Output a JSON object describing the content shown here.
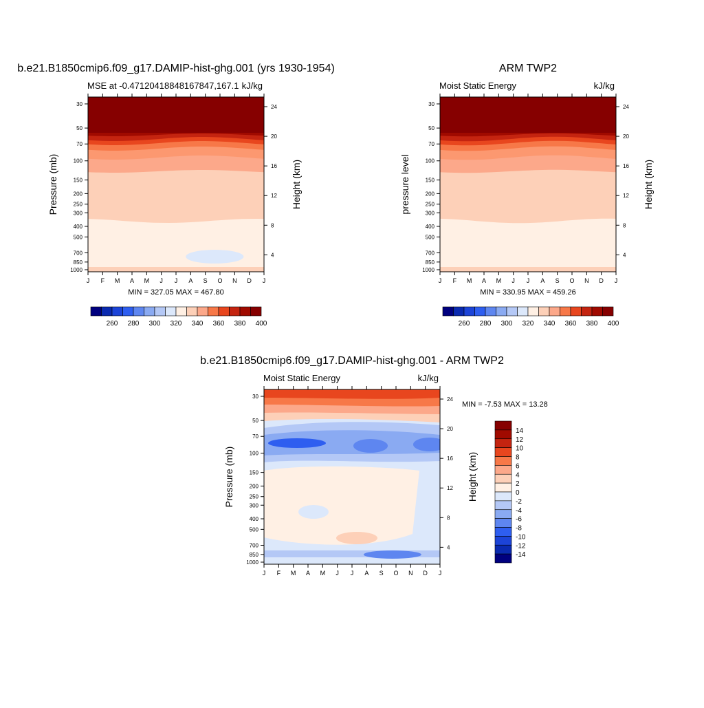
{
  "chart_data": [
    {
      "type": "heatmap",
      "title": "b.e21.B1850cmip6.f09_g17.DAMIP-hist-ghg.001 (yrs 1930-1954)",
      "left_subtitle": "MSE at -0.47120418848167847,167.1",
      "right_subtitle": "kJ/kg",
      "ylabel": "Pressure (mb)",
      "ylabel_right": "Height (km)",
      "x_ticks": [
        "J",
        "F",
        "M",
        "A",
        "M",
        "J",
        "J",
        "A",
        "S",
        "O",
        "N",
        "D",
        "J"
      ],
      "y_ticks": [
        "30",
        "50",
        "70",
        "100",
        "150",
        "200",
        "250",
        "300",
        "400",
        "500",
        "700",
        "850",
        "1000"
      ],
      "height_ticks": [
        "24",
        "20",
        "16",
        "12",
        "8",
        "4"
      ],
      "stats": "MIN = 327.05 MAX = 467.80",
      "levels": [
        260,
        270,
        280,
        290,
        300,
        310,
        320,
        330,
        340,
        350,
        360,
        370,
        380,
        390,
        400
      ],
      "colorbar_labels": [
        "260",
        "280",
        "300",
        "320",
        "340",
        "360",
        "380",
        "400"
      ]
    },
    {
      "type": "heatmap",
      "title": "ARM TWP2",
      "left_subtitle": "Moist Static Energy",
      "right_subtitle": "kJ/kg",
      "ylabel": "pressure level",
      "ylabel_right": "Height (km)",
      "x_ticks": [
        "J",
        "F",
        "M",
        "A",
        "M",
        "J",
        "J",
        "A",
        "S",
        "O",
        "N",
        "D",
        "J"
      ],
      "y_ticks": [
        "30",
        "50",
        "70",
        "100",
        "150",
        "200",
        "250",
        "300",
        "400",
        "500",
        "700",
        "850",
        "1000"
      ],
      "height_ticks": [
        "24",
        "20",
        "16",
        "12",
        "8",
        "4"
      ],
      "stats": "MIN = 330.95 MAX = 459.26",
      "levels": [
        260,
        270,
        280,
        290,
        300,
        310,
        320,
        330,
        340,
        350,
        360,
        370,
        380,
        390,
        400
      ],
      "colorbar_labels": [
        "260",
        "280",
        "300",
        "320",
        "340",
        "360",
        "380",
        "400"
      ]
    },
    {
      "type": "heatmap",
      "title": "b.e21.B1850cmip6.f09_g17.DAMIP-hist-ghg.001 - ARM TWP2",
      "left_subtitle": "Moist Static Energy",
      "right_subtitle": "kJ/kg",
      "ylabel": "Pressure (mb)",
      "ylabel_right": "Height (km)",
      "x_ticks": [
        "J",
        "F",
        "M",
        "A",
        "M",
        "J",
        "J",
        "A",
        "S",
        "O",
        "N",
        "D",
        "J"
      ],
      "y_ticks": [
        "30",
        "50",
        "70",
        "100",
        "150",
        "200",
        "250",
        "300",
        "400",
        "500",
        "700",
        "850",
        "1000"
      ],
      "height_ticks": [
        "24",
        "20",
        "16",
        "12",
        "8",
        "4"
      ],
      "stats": "MIN =  -7.53 MAX =  13.28",
      "levels": [
        -14,
        -12,
        -10,
        -8,
        -6,
        -4,
        -2,
        0,
        2,
        4,
        6,
        8,
        10,
        12,
        14
      ],
      "colorbar_labels": [
        "14",
        "12",
        "10",
        "8",
        "6",
        "4",
        "2",
        "0",
        "-2",
        "-4",
        "-6",
        "-8",
        "-10",
        "-12",
        "-14"
      ]
    }
  ],
  "palette": [
    "#00007f",
    "#0a2ab0",
    "#1c44d8",
    "#2e5ef0",
    "#5e86f0",
    "#8aaaf2",
    "#b4c8f6",
    "#dce8fb",
    "#fff0e4",
    "#fdd0b8",
    "#fca88a",
    "#f77848",
    "#e8461e",
    "#c42410",
    "#a00a00",
    "#860000"
  ]
}
